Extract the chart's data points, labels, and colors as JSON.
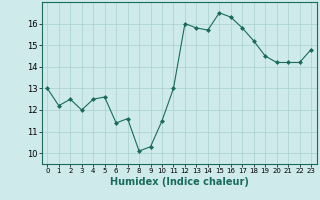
{
  "x": [
    0,
    1,
    2,
    3,
    4,
    5,
    6,
    7,
    8,
    9,
    10,
    11,
    12,
    13,
    14,
    15,
    16,
    17,
    18,
    19,
    20,
    21,
    22,
    23
  ],
  "y": [
    13.0,
    12.2,
    12.5,
    12.0,
    12.5,
    12.6,
    11.4,
    11.6,
    10.1,
    10.3,
    11.5,
    13.0,
    16.0,
    15.8,
    15.7,
    16.5,
    16.3,
    15.8,
    15.2,
    14.5,
    14.2,
    14.2,
    14.2,
    14.8
  ],
  "xlabel": "Humidex (Indice chaleur)",
  "xlim": [
    -0.5,
    23.5
  ],
  "ylim": [
    9.5,
    17.0
  ],
  "yticks": [
    10,
    11,
    12,
    13,
    14,
    15,
    16
  ],
  "xticks": [
    0,
    1,
    2,
    3,
    4,
    5,
    6,
    7,
    8,
    9,
    10,
    11,
    12,
    13,
    14,
    15,
    16,
    17,
    18,
    19,
    20,
    21,
    22,
    23
  ],
  "line_color": "#1a6b5e",
  "marker": "D",
  "marker_size": 2,
  "bg_color": "#ceeaea",
  "grid_color": "#aad0d0",
  "xlabel_fontsize": 7,
  "tick_fontsize": 5
}
